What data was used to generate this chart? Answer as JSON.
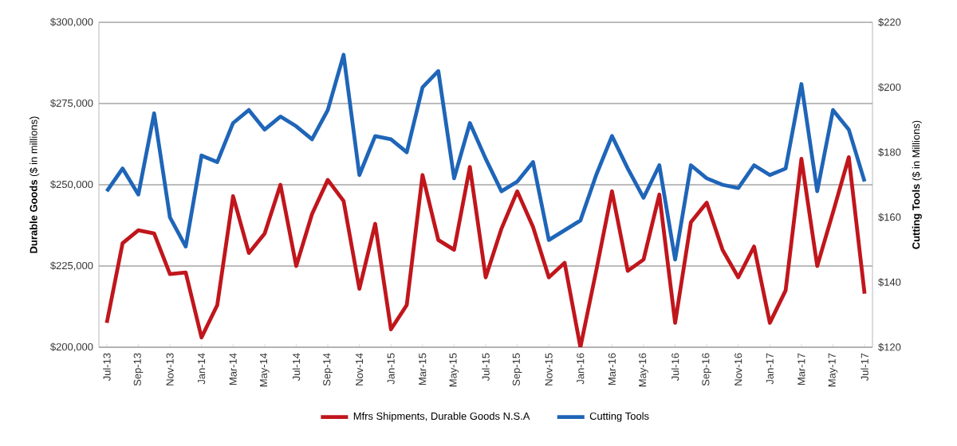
{
  "chart_data": {
    "type": "line",
    "categories": [
      "Jul-13",
      null,
      "Sep-13",
      null,
      "Nov-13",
      null,
      "Jan-14",
      null,
      "Mar-14",
      null,
      "May-14",
      null,
      "Jul-14",
      null,
      "Sep-14",
      null,
      "Nov-14",
      null,
      "Jan-15",
      null,
      "Mar-15",
      null,
      "May-15",
      null,
      "Jul-15",
      null,
      "Sep-15",
      null,
      "Nov-15",
      null,
      "Jan-16",
      null,
      "Mar-16",
      null,
      "May-16",
      null,
      "Jul-16",
      null,
      "Sep-16",
      null,
      "Nov-16",
      null,
      "Jan-17",
      null,
      "Mar-17",
      null,
      "May-17",
      null,
      "Jul-17"
    ],
    "series": [
      {
        "name": "Mfrs Shipments, Durable Goods N.S.A",
        "color": "#c0161c",
        "values": [
          207500,
          232000,
          236000,
          235000,
          222500,
          223000,
          203000,
          213000,
          246500,
          229000,
          235000,
          250000,
          225000,
          241000,
          251500,
          245000,
          218000,
          238000,
          205500,
          213000,
          253000,
          233000,
          230000,
          255500,
          221500,
          236500,
          248000,
          237000,
          221500,
          226000,
          200000,
          223500,
          248000,
          223500,
          227000,
          247000,
          207500,
          238500,
          244500,
          230000,
          221500,
          231000,
          207500,
          217500,
          258000,
          225000,
          241500,
          258500,
          216500
        ]
      },
      {
        "name": "Cutting Tools",
        "color": "#1f65b8",
        "axis": "y2",
        "values": [
          168,
          175,
          167,
          192,
          160,
          151,
          179,
          177,
          189,
          193,
          187,
          191,
          188,
          184,
          193,
          210,
          173,
          185,
          184,
          180,
          200,
          205,
          172,
          189,
          178,
          168,
          171,
          177,
          153,
          156,
          159,
          173,
          185,
          175,
          166,
          176,
          147,
          176,
          172,
          170,
          169,
          176,
          173,
          175,
          201,
          168,
          193,
          187,
          171
        ]
      }
    ],
    "ylabel": "**Durable Goods** ($ in millions)",
    "y2label": "**Cutting Tools** ($ in Millions)",
    "ylim": [
      200000,
      300000
    ],
    "yticks": [
      {
        "value": 200000,
        "label": "$200,000"
      },
      {
        "value": 225000,
        "label": "$225,000"
      },
      {
        "value": 250000,
        "label": "$250,000"
      },
      {
        "value": 275000,
        "label": "$275,000"
      },
      {
        "value": 300000,
        "label": "$300,000"
      }
    ],
    "y2lim": [
      120,
      220
    ],
    "y2ticks": [
      {
        "value": 120,
        "label": "$120"
      },
      {
        "value": 140,
        "label": "$140"
      },
      {
        "value": 160,
        "label": "$160"
      },
      {
        "value": 180,
        "label": "$180"
      },
      {
        "value": 200,
        "label": "$200"
      },
      {
        "value": 220,
        "label": "$220"
      }
    ],
    "grid": "y",
    "legend": "bottom"
  }
}
